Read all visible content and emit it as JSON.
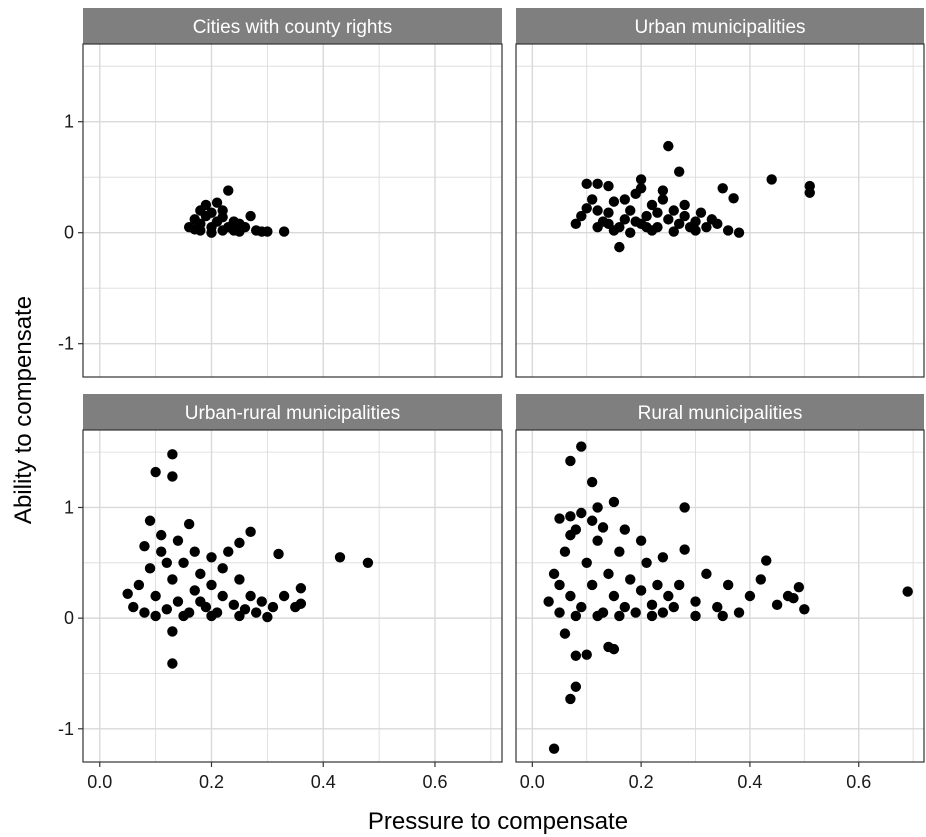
{
  "chart_data": {
    "type": "scatter",
    "facet_layout": "2x2",
    "xlabel": "Pressure to compensate",
    "ylabel": "Ability to compensate",
    "xlim": [
      -0.03,
      0.72
    ],
    "ylim": [
      -1.3,
      1.7
    ],
    "x_ticks": [
      0.0,
      0.2,
      0.4,
      0.6
    ],
    "x_tick_labels": [
      "0.0",
      "0.2",
      "0.4",
      "0.6"
    ],
    "y_ticks": [
      -1,
      0,
      1
    ],
    "y_tick_labels": [
      "-1",
      "0",
      "1"
    ],
    "grid": true,
    "point_color": "#000000",
    "strip_color": "#7f7f7f",
    "panel_border_color": "#333333",
    "grid_color": "#d9d9d9",
    "facets": [
      {
        "title": "Cities with county rights",
        "points": [
          [
            0.17,
            0.03
          ],
          [
            0.17,
            0.12
          ],
          [
            0.18,
            0.2
          ],
          [
            0.18,
            0.08
          ],
          [
            0.19,
            0.15
          ],
          [
            0.19,
            0.25
          ],
          [
            0.2,
            0.05
          ],
          [
            0.2,
            0.18
          ],
          [
            0.21,
            0.1
          ],
          [
            0.21,
            0.27
          ],
          [
            0.22,
            0.02
          ],
          [
            0.22,
            0.14
          ],
          [
            0.23,
            0.38
          ],
          [
            0.23,
            0.05
          ],
          [
            0.24,
            0.02
          ],
          [
            0.24,
            0.1
          ],
          [
            0.25,
            0.01
          ],
          [
            0.26,
            0.05
          ],
          [
            0.27,
            0.15
          ],
          [
            0.28,
            0.02
          ],
          [
            0.29,
            0.01
          ],
          [
            0.3,
            0.01
          ],
          [
            0.33,
            0.01
          ],
          [
            0.16,
            0.05
          ],
          [
            0.2,
            0.0
          ],
          [
            0.25,
            0.08
          ],
          [
            0.22,
            0.2
          ],
          [
            0.18,
            0.02
          ]
        ]
      },
      {
        "title": "Urban municipalities",
        "points": [
          [
            0.25,
            0.78
          ],
          [
            0.27,
            0.55
          ],
          [
            0.44,
            0.48
          ],
          [
            0.51,
            0.42
          ],
          [
            0.51,
            0.36
          ],
          [
            0.16,
            -0.13
          ],
          [
            0.2,
            0.48
          ],
          [
            0.35,
            0.4
          ],
          [
            0.37,
            0.31
          ],
          [
            0.36,
            0.02
          ],
          [
            0.38,
            0.0
          ],
          [
            0.1,
            0.44
          ],
          [
            0.12,
            0.44
          ],
          [
            0.14,
            0.42
          ],
          [
            0.08,
            0.08
          ],
          [
            0.09,
            0.15
          ],
          [
            0.1,
            0.22
          ],
          [
            0.11,
            0.3
          ],
          [
            0.12,
            0.05
          ],
          [
            0.13,
            0.1
          ],
          [
            0.14,
            0.18
          ],
          [
            0.15,
            0.28
          ],
          [
            0.16,
            0.05
          ],
          [
            0.17,
            0.12
          ],
          [
            0.18,
            0.2
          ],
          [
            0.19,
            0.35
          ],
          [
            0.2,
            0.08
          ],
          [
            0.21,
            0.15
          ],
          [
            0.22,
            0.25
          ],
          [
            0.23,
            0.05
          ],
          [
            0.24,
            0.3
          ],
          [
            0.25,
            0.12
          ],
          [
            0.26,
            0.2
          ],
          [
            0.27,
            0.08
          ],
          [
            0.28,
            0.15
          ],
          [
            0.29,
            0.05
          ],
          [
            0.3,
            0.1
          ],
          [
            0.31,
            0.18
          ],
          [
            0.32,
            0.05
          ],
          [
            0.33,
            0.12
          ],
          [
            0.34,
            0.08
          ],
          [
            0.15,
            0.02
          ],
          [
            0.18,
            0.0
          ],
          [
            0.22,
            0.02
          ],
          [
            0.26,
            0.01
          ],
          [
            0.19,
            0.1
          ],
          [
            0.21,
            0.05
          ],
          [
            0.23,
            0.18
          ],
          [
            0.17,
            0.3
          ],
          [
            0.2,
            0.4
          ],
          [
            0.24,
            0.38
          ],
          [
            0.12,
            0.2
          ],
          [
            0.28,
            0.25
          ],
          [
            0.3,
            0.02
          ],
          [
            0.14,
            0.08
          ]
        ]
      },
      {
        "title": "Urban-rural municipalities",
        "points": [
          [
            0.13,
            1.48
          ],
          [
            0.13,
            1.28
          ],
          [
            0.1,
            1.32
          ],
          [
            0.09,
            0.88
          ],
          [
            0.16,
            0.85
          ],
          [
            0.48,
            0.5
          ],
          [
            0.43,
            0.55
          ],
          [
            0.13,
            -0.12
          ],
          [
            0.13,
            -0.41
          ],
          [
            0.32,
            0.58
          ],
          [
            0.36,
            0.27
          ],
          [
            0.36,
            0.13
          ],
          [
            0.35,
            0.1
          ],
          [
            0.3,
            0.01
          ],
          [
            0.27,
            0.78
          ],
          [
            0.05,
            0.22
          ],
          [
            0.06,
            0.1
          ],
          [
            0.07,
            0.3
          ],
          [
            0.08,
            0.05
          ],
          [
            0.09,
            0.45
          ],
          [
            0.1,
            0.2
          ],
          [
            0.11,
            0.6
          ],
          [
            0.12,
            0.08
          ],
          [
            0.13,
            0.35
          ],
          [
            0.14,
            0.15
          ],
          [
            0.15,
            0.5
          ],
          [
            0.16,
            0.05
          ],
          [
            0.17,
            0.25
          ],
          [
            0.18,
            0.4
          ],
          [
            0.19,
            0.1
          ],
          [
            0.2,
            0.3
          ],
          [
            0.21,
            0.05
          ],
          [
            0.22,
            0.2
          ],
          [
            0.23,
            0.6
          ],
          [
            0.24,
            0.12
          ],
          [
            0.25,
            0.35
          ],
          [
            0.26,
            0.08
          ],
          [
            0.27,
            0.2
          ],
          [
            0.28,
            0.05
          ],
          [
            0.29,
            0.15
          ],
          [
            0.31,
            0.1
          ],
          [
            0.33,
            0.2
          ],
          [
            0.08,
            0.65
          ],
          [
            0.11,
            0.75
          ],
          [
            0.14,
            0.7
          ],
          [
            0.17,
            0.6
          ],
          [
            0.2,
            0.55
          ],
          [
            0.22,
            0.45
          ],
          [
            0.25,
            0.68
          ],
          [
            0.1,
            0.02
          ],
          [
            0.15,
            0.02
          ],
          [
            0.2,
            0.02
          ],
          [
            0.25,
            0.02
          ],
          [
            0.12,
            0.5
          ],
          [
            0.18,
            0.15
          ]
        ]
      },
      {
        "title": "Rural municipalities",
        "points": [
          [
            0.09,
            1.55
          ],
          [
            0.07,
            1.42
          ],
          [
            0.11,
            1.23
          ],
          [
            0.15,
            1.05
          ],
          [
            0.12,
            1.0
          ],
          [
            0.28,
            1.0
          ],
          [
            0.07,
            0.92
          ],
          [
            0.69,
            0.24
          ],
          [
            0.5,
            0.08
          ],
          [
            0.49,
            0.28
          ],
          [
            0.48,
            0.18
          ],
          [
            0.43,
            0.52
          ],
          [
            0.04,
            -1.18
          ],
          [
            0.07,
            -0.73
          ],
          [
            0.08,
            -0.62
          ],
          [
            0.08,
            -0.34
          ],
          [
            0.1,
            -0.33
          ],
          [
            0.14,
            -0.26
          ],
          [
            0.15,
            -0.28
          ],
          [
            0.06,
            -0.14
          ],
          [
            0.03,
            0.15
          ],
          [
            0.04,
            0.4
          ],
          [
            0.05,
            0.05
          ],
          [
            0.06,
            0.6
          ],
          [
            0.07,
            0.2
          ],
          [
            0.08,
            0.8
          ],
          [
            0.09,
            0.1
          ],
          [
            0.1,
            0.5
          ],
          [
            0.11,
            0.3
          ],
          [
            0.12,
            0.7
          ],
          [
            0.13,
            0.05
          ],
          [
            0.14,
            0.4
          ],
          [
            0.15,
            0.2
          ],
          [
            0.16,
            0.6
          ],
          [
            0.17,
            0.1
          ],
          [
            0.18,
            0.35
          ],
          [
            0.19,
            0.05
          ],
          [
            0.2,
            0.25
          ],
          [
            0.21,
            0.5
          ],
          [
            0.22,
            0.12
          ],
          [
            0.23,
            0.3
          ],
          [
            0.24,
            0.05
          ],
          [
            0.25,
            0.2
          ],
          [
            0.26,
            0.1
          ],
          [
            0.27,
            0.3
          ],
          [
            0.28,
            0.62
          ],
          [
            0.3,
            0.15
          ],
          [
            0.32,
            0.4
          ],
          [
            0.34,
            0.1
          ],
          [
            0.36,
            0.3
          ],
          [
            0.38,
            0.05
          ],
          [
            0.4,
            0.2
          ],
          [
            0.42,
            0.35
          ],
          [
            0.45,
            0.12
          ],
          [
            0.47,
            0.2
          ],
          [
            0.05,
            0.9
          ],
          [
            0.07,
            0.75
          ],
          [
            0.09,
            0.95
          ],
          [
            0.11,
            0.88
          ],
          [
            0.13,
            0.82
          ],
          [
            0.17,
            0.8
          ],
          [
            0.2,
            0.7
          ],
          [
            0.24,
            0.55
          ],
          [
            0.08,
            0.02
          ],
          [
            0.12,
            0.02
          ],
          [
            0.16,
            0.02
          ],
          [
            0.22,
            0.02
          ],
          [
            0.3,
            0.02
          ],
          [
            0.35,
            0.02
          ],
          [
            0.05,
            0.3
          ]
        ]
      }
    ]
  }
}
